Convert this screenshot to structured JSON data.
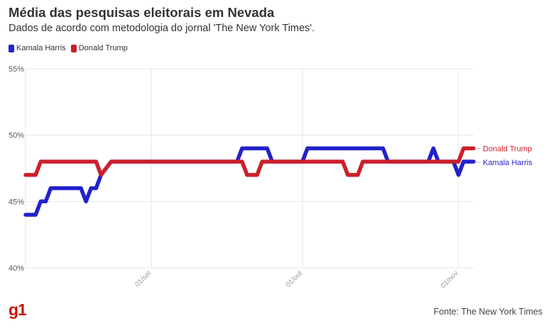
{
  "header": {
    "title": "Média das pesquisas eleitorais em Nevada",
    "subtitle": "Dados de acordo com metodologia do jornal 'The New York Times'."
  },
  "legend": [
    {
      "label": "Kamala Harris",
      "color": "#2222cc"
    },
    {
      "label": "Donald Trump",
      "color": "#cc1f2b"
    }
  ],
  "footer": {
    "logo": "g1",
    "source": "Fonte: The New York Times"
  },
  "chart_data": {
    "type": "line",
    "title": "Média das pesquisas eleitorais em Nevada",
    "subtitle": "Dados de acordo com metodologia do jornal 'The New York Times'.",
    "xlabel": "",
    "ylabel": "",
    "x_range": [
      "2024-08-07",
      "2024-11-04"
    ],
    "ylim": [
      40,
      55
    ],
    "y_ticks": [
      40,
      45,
      50,
      55
    ],
    "y_tick_labels": [
      "40%",
      "45%",
      "50%",
      "55%"
    ],
    "x_ticks": [
      {
        "date": "2024-09-01",
        "label": "01/set"
      },
      {
        "date": "2024-10-01",
        "label": "01/out"
      },
      {
        "date": "2024-11-01",
        "label": "01/nov"
      }
    ],
    "grid": true,
    "legend_position": "top-left",
    "series": [
      {
        "name": "Kamala Harris",
        "color": "#2222cc",
        "end_label": "Kamala Harris",
        "points": [
          [
            "2024-08-07",
            44
          ],
          [
            "2024-08-09",
            44
          ],
          [
            "2024-08-10",
            45
          ],
          [
            "2024-08-11",
            45
          ],
          [
            "2024-08-12",
            46
          ],
          [
            "2024-08-18",
            46
          ],
          [
            "2024-08-19",
            45
          ],
          [
            "2024-08-20",
            46
          ],
          [
            "2024-08-21",
            46
          ],
          [
            "2024-08-22",
            47
          ],
          [
            "2024-08-24",
            48
          ],
          [
            "2024-08-24",
            48
          ],
          [
            "2024-09-18",
            48
          ],
          [
            "2024-09-19",
            49
          ],
          [
            "2024-09-24",
            49
          ],
          [
            "2024-09-25",
            48
          ],
          [
            "2024-10-01",
            48
          ],
          [
            "2024-10-02",
            49
          ],
          [
            "2024-10-17",
            49
          ],
          [
            "2024-10-18",
            48
          ],
          [
            "2024-10-25",
            48
          ],
          [
            "2024-10-26",
            48
          ],
          [
            "2024-10-27",
            49
          ],
          [
            "2024-10-28",
            48
          ],
          [
            "2024-10-31",
            48
          ],
          [
            "2024-11-01",
            47
          ],
          [
            "2024-11-02",
            48
          ],
          [
            "2024-11-04",
            48
          ]
        ]
      },
      {
        "name": "Donald Trump",
        "color": "#cc1f2b",
        "end_label": "Donald Trump",
        "points": [
          [
            "2024-08-07",
            47
          ],
          [
            "2024-08-09",
            47
          ],
          [
            "2024-08-10",
            48
          ],
          [
            "2024-08-21",
            48
          ],
          [
            "2024-08-22",
            47
          ],
          [
            "2024-08-24",
            48
          ],
          [
            "2024-09-19",
            48
          ],
          [
            "2024-09-20",
            47
          ],
          [
            "2024-09-22",
            47
          ],
          [
            "2024-09-23",
            48
          ],
          [
            "2024-10-09",
            48
          ],
          [
            "2024-10-10",
            47
          ],
          [
            "2024-10-12",
            47
          ],
          [
            "2024-10-13",
            48
          ],
          [
            "2024-11-01",
            48
          ],
          [
            "2024-11-02",
            49
          ],
          [
            "2024-11-04",
            49
          ]
        ]
      }
    ]
  }
}
